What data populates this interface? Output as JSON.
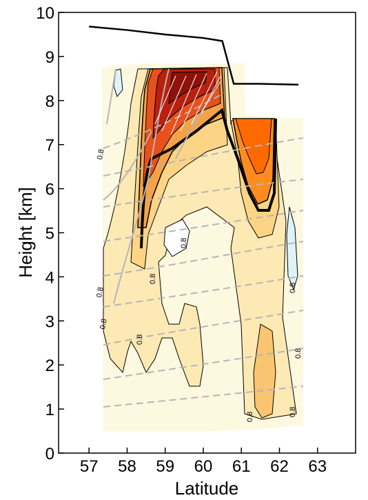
{
  "chart_data": {
    "type": "contour",
    "title": "",
    "xlabel": "Latitude",
    "ylabel": "Height [km]",
    "xlim": [
      56.2,
      64.0
    ],
    "ylim": [
      0,
      10
    ],
    "xticks": [
      57,
      58,
      59,
      60,
      61,
      62,
      63
    ],
    "yticks": [
      0,
      1,
      2,
      3,
      4,
      5,
      6,
      7,
      8,
      9,
      10
    ],
    "grid": false,
    "legend": "none",
    "colors": {
      "palest": "#fdf8e0",
      "light": "#fde9b4",
      "mid": "#fbd486",
      "orange": "#f4a24a",
      "deep_orange": "#ff6a00",
      "red": "#d8331f",
      "dark_red": "#a8170c",
      "negative": "#def3f7",
      "background_lines": "#b5b5b5",
      "boundary": "#000000"
    },
    "contour_labels": [
      "0.8",
      "0.8",
      "0.8",
      "0.8",
      "0.8",
      "0.8",
      "0.8",
      "0.8",
      "0.8",
      "0.8"
    ],
    "boundary_line": {
      "name": "",
      "x": [
        57.0,
        58.0,
        59.0,
        60.0,
        60.5,
        60.8,
        61.5,
        62.5
      ],
      "y": [
        9.68,
        9.6,
        9.5,
        9.42,
        9.35,
        8.38,
        8.38,
        8.36
      ]
    }
  }
}
